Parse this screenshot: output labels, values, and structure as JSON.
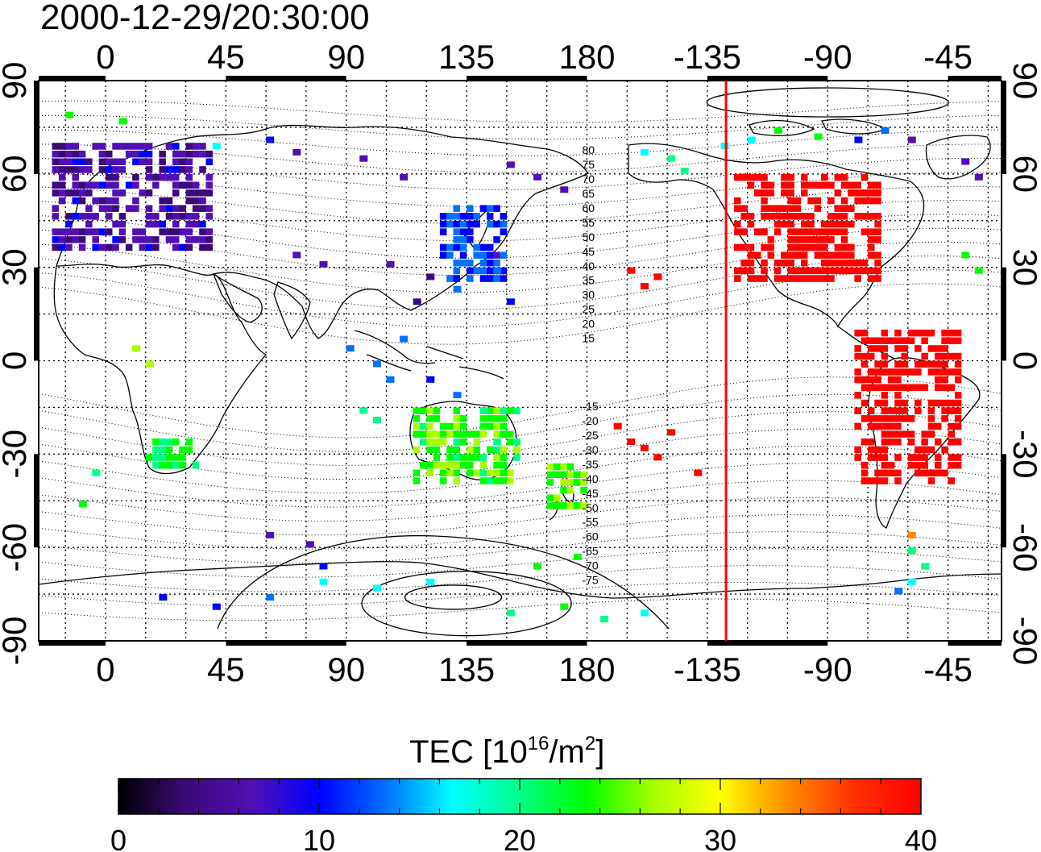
{
  "title": "2000-12-29/20:30:00",
  "top_lon_labels": [
    "0",
    "45",
    "90",
    "135",
    "180",
    "-135",
    "-90",
    "-45"
  ],
  "bottom_lon_labels": [
    "0",
    "45",
    "90",
    "135",
    "180",
    "-135",
    "-90",
    "-45"
  ],
  "left_lat_labels": [
    "90",
    "60",
    "30",
    "0",
    "-30",
    "-60",
    "-90"
  ],
  "right_lat_labels": [
    "90",
    "60",
    "30",
    "0",
    "-30",
    "-60",
    "-90"
  ],
  "contour_labels": [
    "80",
    "75",
    "70",
    "65",
    "60",
    "55",
    "50",
    "45",
    "40",
    "35",
    "30",
    "25",
    "20",
    "15",
    "-15",
    "-20",
    "-25",
    "-30",
    "-35",
    "-40",
    "-45",
    "-50",
    "-55",
    "-60",
    "-65",
    "-70",
    "-75"
  ],
  "terminator_color": "#ff0000",
  "colorbar": {
    "title_main": "TEC  [10",
    "title_sup1": "16",
    "title_mid": "/m",
    "title_sup2": "2",
    "title_end": "]",
    "tick_labels": [
      "0",
      "10",
      "20",
      "30",
      "40"
    ],
    "min": 0,
    "max": 40,
    "colors": [
      "#000000",
      "#3a0a78",
      "#5010b4",
      "#0000ff",
      "#0070ff",
      "#00ffff",
      "#00ff88",
      "#00ff00",
      "#a8ff00",
      "#ffff00",
      "#ff8c00",
      "#ff3000",
      "#ff0000"
    ]
  },
  "chart_data": {
    "type": "heatmap",
    "title": "2000-12-29/20:30:00",
    "xlabel": "",
    "ylabel": "",
    "value_label": "TEC [10^16/m^2]",
    "xlim": [
      -25,
      335
    ],
    "ylim": [
      -90,
      90
    ],
    "x_ticks": [
      0,
      45,
      90,
      135,
      180,
      225,
      270,
      315
    ],
    "y_ticks": [
      90,
      60,
      30,
      0,
      -30,
      -60,
      -90
    ],
    "terminator_lon": -128,
    "regions": [
      {
        "name": "",
        "lon_min": -20,
        "lon_max": 40,
        "lat_min": 35,
        "lat_max": 70,
        "tec": 6
      },
      {
        "name": "",
        "lon_min": 125,
        "lon_max": 150,
        "lat_min": 25,
        "lat_max": 50,
        "tec": 11
      },
      {
        "name": "",
        "lon_min": -125,
        "lon_max": -70,
        "lat_min": 25,
        "lat_max": 60,
        "tec": 40
      },
      {
        "name": "",
        "lon_min": -80,
        "lon_max": -40,
        "lat_min": -40,
        "lat_max": 10,
        "tec": 40
      },
      {
        "name": "",
        "lon_min": 115,
        "lon_max": 155,
        "lat_min": -40,
        "lat_max": -15,
        "tec": 24
      },
      {
        "name": "",
        "lon_min": 165,
        "lon_max": 180,
        "lat_min": -48,
        "lat_max": -35,
        "tec": 25
      },
      {
        "name": "",
        "lon_min": 15,
        "lon_max": 35,
        "lat_min": -35,
        "lat_max": -25,
        "tec": 22
      }
    ]
  }
}
